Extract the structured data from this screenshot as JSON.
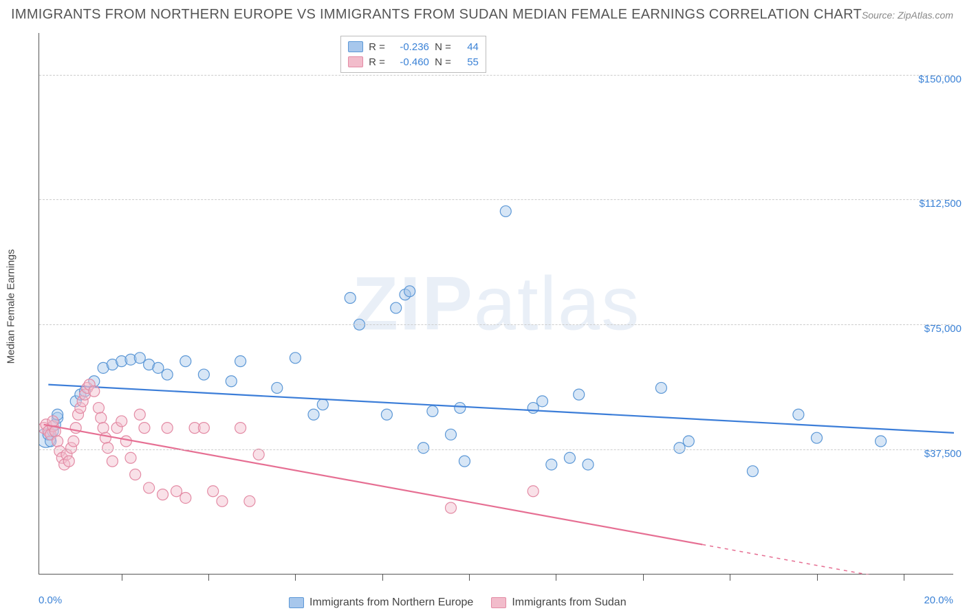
{
  "title": "IMMIGRANTS FROM NORTHERN EUROPE VS IMMIGRANTS FROM SUDAN MEDIAN FEMALE EARNINGS CORRELATION CHART",
  "source_prefix": "Source: ",
  "source_name": "ZipAtlas.com",
  "ylabel": "Median Female Earnings",
  "watermark_bold": "ZIP",
  "watermark_light": "atlas",
  "chart": {
    "type": "scatter",
    "xlim": [
      0,
      20
    ],
    "ylim": [
      0,
      162500
    ],
    "x_ticks_pct_positions": [
      0.09,
      0.185,
      0.28,
      0.375,
      0.47,
      0.565,
      0.66,
      0.755,
      0.85,
      0.945
    ],
    "y_gridlines": [
      37500,
      75000,
      112500,
      150000
    ],
    "y_tick_labels": [
      "$37,500",
      "$75,000",
      "$112,500",
      "$150,000"
    ],
    "x_left_label": "0.0%",
    "x_right_label": "20.0%",
    "background_color": "#ffffff",
    "grid_color": "#cccccc",
    "axis_color": "#555555",
    "label_color": "#3b82d6",
    "marker_radius": 8,
    "marker_radius_large": 14,
    "marker_opacity": 0.45,
    "line_width": 2.2
  },
  "series": [
    {
      "key": "northern_europe",
      "label": "Immigrants from Northern Europe",
      "fill": "#a7c7ec",
      "stroke": "#5b97d6",
      "line_color": "#3b7dd8",
      "R": "-0.236",
      "N": "44",
      "trend": {
        "x1": 0.2,
        "y1": 57000,
        "x2": 20,
        "y2": 42500
      },
      "points": [
        [
          0.15,
          41000,
          14
        ],
        [
          0.2,
          42000
        ],
        [
          0.25,
          40000
        ],
        [
          0.3,
          43000
        ],
        [
          0.35,
          45000
        ],
        [
          0.4,
          47000
        ],
        [
          0.4,
          48000
        ],
        [
          0.8,
          52000
        ],
        [
          0.9,
          54000
        ],
        [
          1.0,
          55000
        ],
        [
          1.2,
          58000
        ],
        [
          1.4,
          62000
        ],
        [
          1.6,
          63000
        ],
        [
          1.8,
          64000
        ],
        [
          2.0,
          64500
        ],
        [
          2.2,
          65000
        ],
        [
          2.4,
          63000
        ],
        [
          2.6,
          62000
        ],
        [
          2.8,
          60000
        ],
        [
          3.2,
          64000
        ],
        [
          3.6,
          60000
        ],
        [
          4.2,
          58000
        ],
        [
          4.4,
          64000
        ],
        [
          5.2,
          56000
        ],
        [
          5.6,
          65000
        ],
        [
          6.0,
          48000
        ],
        [
          6.2,
          51000
        ],
        [
          6.8,
          83000
        ],
        [
          7.0,
          75000
        ],
        [
          7.6,
          48000
        ],
        [
          7.8,
          80000
        ],
        [
          8.0,
          84000
        ],
        [
          8.1,
          85000
        ],
        [
          8.4,
          38000
        ],
        [
          8.6,
          49000
        ],
        [
          9.0,
          42000
        ],
        [
          9.2,
          50000
        ],
        [
          9.3,
          34000
        ],
        [
          10.2,
          109000
        ],
        [
          10.8,
          50000
        ],
        [
          11.0,
          52000
        ],
        [
          11.2,
          33000
        ],
        [
          11.6,
          35000
        ],
        [
          11.8,
          54000
        ],
        [
          12.0,
          33000
        ],
        [
          13.6,
          56000
        ],
        [
          14.0,
          38000
        ],
        [
          14.2,
          40000
        ],
        [
          15.6,
          31000
        ],
        [
          16.6,
          48000
        ],
        [
          17.0,
          41000
        ],
        [
          18.4,
          40000
        ]
      ]
    },
    {
      "key": "sudan",
      "label": "Immigrants from Sudan",
      "fill": "#f2bccb",
      "stroke": "#e38aa4",
      "line_color": "#e66f93",
      "R": "-0.460",
      "N": "55",
      "trend": {
        "x1": 0.1,
        "y1": 45000,
        "x2": 14.5,
        "y2": 9000
      },
      "trend_dashed_to_x": 20,
      "points": [
        [
          0.1,
          44000
        ],
        [
          0.15,
          45000
        ],
        [
          0.2,
          43000
        ],
        [
          0.25,
          42000
        ],
        [
          0.3,
          44500
        ],
        [
          0.3,
          46000
        ],
        [
          0.35,
          43000
        ],
        [
          0.4,
          40000
        ],
        [
          0.45,
          37000
        ],
        [
          0.5,
          35000
        ],
        [
          0.55,
          33000
        ],
        [
          0.6,
          36000
        ],
        [
          0.65,
          34000
        ],
        [
          0.7,
          38000
        ],
        [
          0.75,
          40000
        ],
        [
          0.8,
          44000
        ],
        [
          0.85,
          48000
        ],
        [
          0.9,
          50000
        ],
        [
          0.95,
          52000
        ],
        [
          1.0,
          54000
        ],
        [
          1.05,
          56000
        ],
        [
          1.1,
          57000
        ],
        [
          1.2,
          55000
        ],
        [
          1.3,
          50000
        ],
        [
          1.35,
          47000
        ],
        [
          1.4,
          44000
        ],
        [
          1.45,
          41000
        ],
        [
          1.5,
          38000
        ],
        [
          1.6,
          34000
        ],
        [
          1.7,
          44000
        ],
        [
          1.8,
          46000
        ],
        [
          1.9,
          40000
        ],
        [
          2.0,
          35000
        ],
        [
          2.1,
          30000
        ],
        [
          2.2,
          48000
        ],
        [
          2.3,
          44000
        ],
        [
          2.4,
          26000
        ],
        [
          2.7,
          24000
        ],
        [
          2.8,
          44000
        ],
        [
          3.0,
          25000
        ],
        [
          3.2,
          23000
        ],
        [
          3.4,
          44000
        ],
        [
          3.6,
          44000
        ],
        [
          3.8,
          25000
        ],
        [
          4.0,
          22000
        ],
        [
          4.4,
          44000
        ],
        [
          4.6,
          22000
        ],
        [
          4.8,
          36000
        ],
        [
          9.0,
          20000
        ],
        [
          10.8,
          25000
        ]
      ]
    }
  ],
  "legend_top_labels": {
    "R": "R =",
    "N": "N ="
  }
}
